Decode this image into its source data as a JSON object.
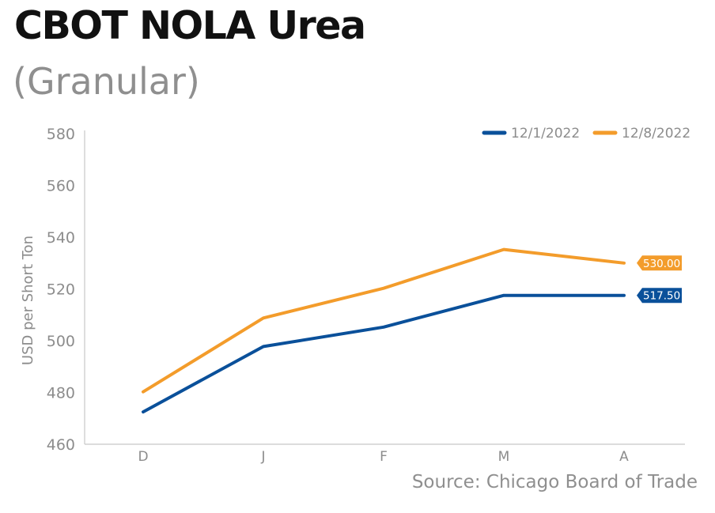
{
  "title": "CBOT NOLA Urea",
  "subtitle": "(Granular)",
  "source": "Source: Chicago Board of Trade",
  "chart_data": {
    "type": "line",
    "categories": [
      "D",
      "J",
      "F",
      "M",
      "A"
    ],
    "ylabel": "USD per Short Ton",
    "xlabel": "",
    "ylim": [
      460,
      580
    ],
    "yticks": [
      460,
      480,
      500,
      520,
      540,
      560,
      580
    ],
    "legend_position": "top-right",
    "grid": false,
    "series": [
      {
        "name": "12/1/2022",
        "color": "#0a509a",
        "values": [
          472.5,
          497.75,
          505.25,
          517.5,
          517.5
        ],
        "end_label": "517.50"
      },
      {
        "name": "12/8/2022",
        "color": "#f39c2b",
        "values": [
          480.25,
          508.75,
          520.25,
          535.25,
          530.0
        ],
        "end_label": "530.00"
      }
    ]
  }
}
